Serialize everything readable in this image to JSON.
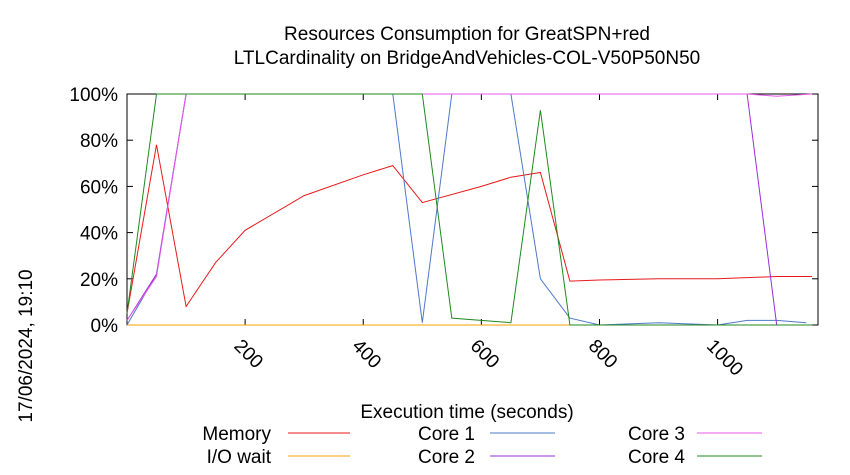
{
  "chart_data": {
    "type": "line",
    "title": "Resources Consumption for GreatSPN+red",
    "subtitle": "LTLCardinality on BridgeAndVehicles-COL-V50P50N50",
    "xlabel": "Execution time (seconds)",
    "ylabel": "",
    "side_label": "17/06/2024, 19:10",
    "xlim": [
      0,
      1170
    ],
    "ylim": [
      0,
      100
    ],
    "x_ticks": [
      200,
      400,
      600,
      800,
      1000
    ],
    "y_ticks": [
      0,
      20,
      40,
      60,
      80,
      100
    ],
    "y_tick_labels": [
      "0%",
      "20%",
      "40%",
      "60%",
      "80%",
      "100%"
    ],
    "grid": false,
    "legend_position": "bottom",
    "series": [
      {
        "name": "Memory",
        "color": "#e8191b",
        "points": [
          [
            0,
            5
          ],
          [
            50,
            78
          ],
          [
            100,
            8
          ],
          [
            150,
            27
          ],
          [
            200,
            41
          ],
          [
            300,
            56
          ],
          [
            400,
            65
          ],
          [
            450,
            69
          ],
          [
            500,
            53
          ],
          [
            600,
            60
          ],
          [
            650,
            64
          ],
          [
            700,
            66
          ],
          [
            750,
            19
          ],
          [
            800,
            19.5
          ],
          [
            900,
            20
          ],
          [
            1000,
            20
          ],
          [
            1100,
            21
          ],
          [
            1160,
            21
          ]
        ]
      },
      {
        "name": "I/O wait",
        "color": "#f2a000",
        "points": [
          [
            0,
            0
          ],
          [
            1160,
            0
          ]
        ]
      },
      {
        "name": "Core 1",
        "color": "#4f79c7",
        "points": [
          [
            0,
            0
          ],
          [
            50,
            22
          ],
          [
            100,
            100
          ],
          [
            450,
            100
          ],
          [
            500,
            1
          ],
          [
            550,
            100
          ],
          [
            650,
            100
          ],
          [
            700,
            20
          ],
          [
            750,
            3
          ],
          [
            800,
            0
          ],
          [
            900,
            1
          ],
          [
            1000,
            0
          ],
          [
            1050,
            2
          ],
          [
            1100,
            2
          ],
          [
            1150,
            1
          ]
        ]
      },
      {
        "name": "Core 2",
        "color": "#9a2fd8",
        "points": [
          [
            0,
            2
          ],
          [
            50,
            22
          ],
          [
            100,
            100
          ],
          [
            1050,
            100
          ],
          [
            1100,
            0
          ],
          [
            1160,
            0
          ]
        ]
      },
      {
        "name": "Core 3",
        "color": "#e85ae8",
        "points": [
          [
            0,
            2
          ],
          [
            50,
            21
          ],
          [
            100,
            100
          ],
          [
            1050,
            100
          ],
          [
            1100,
            99
          ],
          [
            1160,
            100
          ]
        ]
      },
      {
        "name": "Core 4",
        "color": "#1f8a1f",
        "points": [
          [
            0,
            5
          ],
          [
            50,
            100
          ],
          [
            100,
            100
          ],
          [
            500,
            100
          ],
          [
            550,
            3
          ],
          [
            650,
            1
          ],
          [
            700,
            93
          ],
          [
            750,
            0
          ],
          [
            1160,
            0
          ]
        ]
      }
    ]
  }
}
